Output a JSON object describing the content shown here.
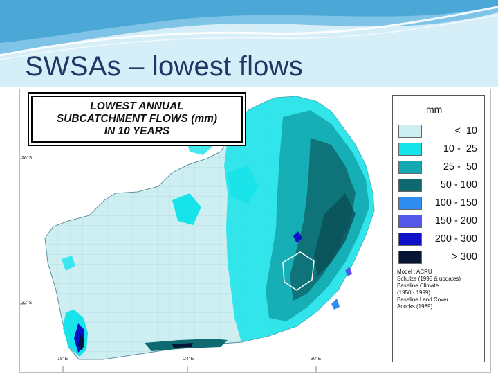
{
  "slide": {
    "title": "SWSAs – lowest flows"
  },
  "map": {
    "title_lines": [
      "LOWEST ANNUAL",
      "SUBCATCHMENT FLOWS (mm)",
      "IN 10 YEARS"
    ],
    "legend": {
      "unit": "mm",
      "classes": [
        {
          "label": "<  10",
          "color": "#cdeff2"
        },
        {
          "label": "10 -  25",
          "color": "#16e3ea"
        },
        {
          "label": "25 -  50",
          "color": "#14a9b0"
        },
        {
          "label": "50 - 100",
          "color": "#0e6a70"
        },
        {
          "label": "100 - 150",
          "color": "#2f8cf0"
        },
        {
          "label": "150 - 200",
          "color": "#5557e8"
        },
        {
          "label": "200 - 300",
          "color": "#1010c8"
        },
        {
          "label": "> 300",
          "color": "#071535"
        }
      ],
      "source": [
        "Model  : ACRU",
        "   Schulze (1995 & updates)",
        "Baseline Climate",
        "   (1950 - 1999)",
        "Baseline Land Cover",
        "   Acocks (1989)"
      ]
    },
    "latitudes": [
      "26°S",
      "32°S"
    ],
    "longitudes": [
      "18°E",
      "24°E",
      "30°E"
    ]
  },
  "colors": {
    "title_text": "#1f3864",
    "header_light": "#c9e8f5",
    "header_dark": "#3f9fcf"
  }
}
